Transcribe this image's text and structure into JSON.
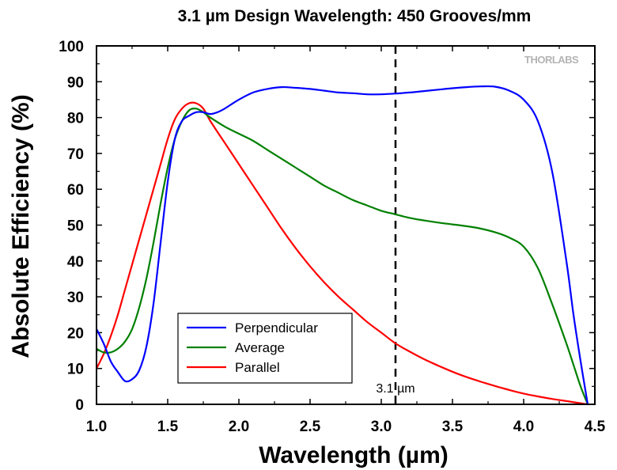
{
  "chart_data": {
    "type": "line",
    "title": "3.1 µm Design Wavelength: 450 Grooves/mm",
    "xlabel": "Wavelength (µm)",
    "ylabel": "Absolute Efficiency (%)",
    "xlim": [
      1.0,
      4.5
    ],
    "ylim": [
      0,
      100
    ],
    "xticks": [
      "1.0",
      "1.5",
      "2.0",
      "2.5",
      "3.0",
      "3.5",
      "4.0",
      "4.5"
    ],
    "yticks": [
      "0",
      "10",
      "20",
      "30",
      "40",
      "50",
      "60",
      "70",
      "80",
      "90",
      "100"
    ],
    "grid": false,
    "legend_position": "bottom-left",
    "annotation": {
      "x": 3.1,
      "label": "3.1 µm"
    },
    "logo": "THORLABS",
    "series": [
      {
        "name": "Perpendicular",
        "color": "#0000ff",
        "x": [
          1.0,
          1.05,
          1.1,
          1.15,
          1.2,
          1.25,
          1.3,
          1.35,
          1.4,
          1.45,
          1.5,
          1.55,
          1.6,
          1.65,
          1.7,
          1.75,
          1.8,
          1.85,
          1.9,
          2.0,
          2.1,
          2.2,
          2.3,
          2.4,
          2.5,
          2.6,
          2.7,
          2.8,
          2.9,
          3.0,
          3.1,
          3.2,
          3.3,
          3.4,
          3.5,
          3.6,
          3.7,
          3.8,
          3.9,
          4.0,
          4.1,
          4.2,
          4.3,
          4.35,
          4.4,
          4.45
        ],
        "values": [
          21,
          17,
          12,
          9,
          6.5,
          7,
          9.5,
          16,
          28,
          45,
          62,
          74,
          79,
          80.5,
          81.5,
          81.5,
          81,
          81.5,
          82.5,
          85,
          87,
          88,
          88.5,
          88.3,
          88,
          87.5,
          87,
          86.8,
          86.5,
          86.5,
          86.7,
          87,
          87.4,
          87.8,
          88.2,
          88.5,
          88.7,
          88.6,
          87.5,
          85,
          79,
          65,
          40,
          25,
          12,
          0
        ]
      },
      {
        "name": "Average",
        "color": "#008000",
        "x": [
          1.0,
          1.05,
          1.1,
          1.15,
          1.2,
          1.25,
          1.3,
          1.35,
          1.4,
          1.45,
          1.5,
          1.55,
          1.6,
          1.65,
          1.7,
          1.75,
          1.8,
          1.9,
          2.0,
          2.1,
          2.2,
          2.3,
          2.4,
          2.5,
          2.6,
          2.7,
          2.8,
          2.9,
          3.0,
          3.1,
          3.2,
          3.3,
          3.4,
          3.5,
          3.6,
          3.7,
          3.8,
          3.9,
          4.0,
          4.1,
          4.2,
          4.3,
          4.35,
          4.4,
          4.45
        ],
        "values": [
          15.5,
          14.5,
          14.5,
          15.5,
          17.5,
          21,
          27,
          35,
          45,
          56,
          66,
          74,
          79,
          82,
          82.5,
          81.5,
          80,
          77.5,
          75.5,
          73.5,
          71,
          68.5,
          66,
          63.5,
          61,
          59,
          57,
          55.5,
          54,
          53,
          52,
          51.3,
          50.7,
          50.2,
          49.7,
          49,
          48,
          46.5,
          44,
          38,
          28,
          17,
          11,
          5,
          0
        ]
      },
      {
        "name": "Parallel",
        "color": "#ff0000",
        "x": [
          1.0,
          1.05,
          1.1,
          1.15,
          1.2,
          1.25,
          1.3,
          1.35,
          1.4,
          1.45,
          1.5,
          1.55,
          1.6,
          1.65,
          1.7,
          1.75,
          1.8,
          1.9,
          2.0,
          2.1,
          2.2,
          2.3,
          2.4,
          2.5,
          2.6,
          2.7,
          2.8,
          2.9,
          3.0,
          3.1,
          3.2,
          3.3,
          3.4,
          3.5,
          3.6,
          3.7,
          3.8,
          3.9,
          4.0,
          4.1,
          4.2,
          4.3,
          4.4,
          4.45
        ],
        "values": [
          10,
          14,
          19,
          25,
          32,
          39,
          46,
          53,
          60,
          67,
          74,
          79.5,
          82.5,
          84,
          84,
          82.5,
          79,
          73,
          67,
          61,
          55,
          49,
          43.5,
          38.5,
          34,
          30,
          26.5,
          23,
          20,
          17,
          14.7,
          12.6,
          10.8,
          9.1,
          7.6,
          6.3,
          5.1,
          4.0,
          3.0,
          2.2,
          1.5,
          0.9,
          0.3,
          0
        ]
      }
    ]
  }
}
